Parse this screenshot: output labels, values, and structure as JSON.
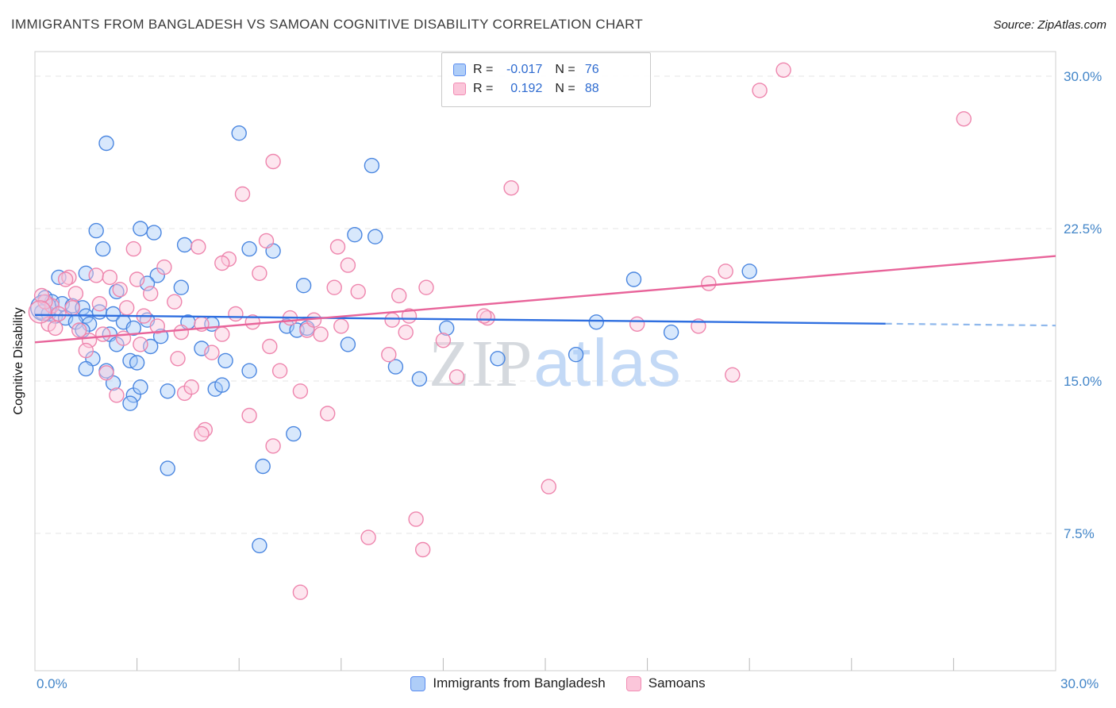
{
  "header": {
    "title": "IMMIGRANTS FROM BANGLADESH VS SAMOAN COGNITIVE DISABILITY CORRELATION CHART",
    "source": "Source: ZipAtlas.com"
  },
  "watermark": {
    "part1": "ZIP",
    "part2": "atlas"
  },
  "y_axis": {
    "label": "Cognitive Disability",
    "ticks": [
      {
        "label": "30.0%",
        "value": 30
      },
      {
        "label": "22.5%",
        "value": 22.5
      },
      {
        "label": "15.0%",
        "value": 15
      },
      {
        "label": "7.5%",
        "value": 7.5
      }
    ]
  },
  "x_axis": {
    "min_label": "0.0%",
    "max_label": "30.0%"
  },
  "stats_box": {
    "rows": [
      {
        "series": "bangladesh",
        "r_label": "R =",
        "r_value": "-0.017",
        "n_label": "N =",
        "n_value": "76"
      },
      {
        "series": "samoans",
        "r_label": "R =",
        "r_value": "0.192",
        "n_label": "N =",
        "n_value": "88"
      }
    ]
  },
  "legend": [
    {
      "series": "bangladesh",
      "label": "Immigrants from Bangladesh"
    },
    {
      "series": "samoans",
      "label": "Samoans"
    }
  ],
  "colors": {
    "bangladesh_fill": "#A8CBF8",
    "bangladesh_stroke": "#4A86E0",
    "samoan_fill": "#FAC8DC",
    "samoan_stroke": "#EE85AD",
    "trend_blue": "#2F6FE0",
    "trend_blue_dashed": "#8FB8EC",
    "trend_pink": "#E8649A",
    "axis_label_blue": "#4285C8",
    "watermark_gray": "#D5D9DE",
    "watermark_blue": "#C3D9F6"
  },
  "chart_data": {
    "type": "scatter",
    "title": "IMMIGRANTS FROM BANGLADESH VS SAMOAN COGNITIVE DISABILITY CORRELATION CHART",
    "xlabel": "",
    "ylabel": "Cognitive Disability",
    "xlim": [
      0,
      30
    ],
    "ylim_visible": [
      0.7,
      31.2
    ],
    "grid_y_values": [
      7.5,
      15,
      22.5,
      30
    ],
    "x_tick_values": [
      3,
      6,
      9,
      12,
      15,
      18,
      21,
      24,
      27
    ],
    "legend_position": "bottom",
    "series": [
      {
        "name": "Immigrants from Bangladesh",
        "R": -0.017,
        "N": 76,
        "points": [
          [
            2.1,
            26.7
          ],
          [
            6.0,
            27.2
          ],
          [
            9.9,
            25.6
          ],
          [
            1.8,
            22.4
          ],
          [
            3.1,
            22.5
          ],
          [
            3.5,
            22.3
          ],
          [
            9.4,
            22.2
          ],
          [
            10.0,
            22.1
          ],
          [
            2.0,
            21.5
          ],
          [
            4.4,
            21.7
          ],
          [
            6.3,
            21.5
          ],
          [
            7.0,
            21.4
          ],
          [
            1.5,
            20.3
          ],
          [
            3.6,
            20.2
          ],
          [
            0.7,
            20.1
          ],
          [
            3.3,
            19.8
          ],
          [
            7.9,
            19.7
          ],
          [
            17.6,
            20.0
          ],
          [
            21.0,
            20.4
          ],
          [
            2.4,
            19.4
          ],
          [
            4.3,
            19.6
          ],
          [
            0.3,
            19.1
          ],
          [
            0.5,
            18.9
          ],
          [
            0.8,
            18.8
          ],
          [
            1.1,
            18.7
          ],
          [
            1.4,
            18.6
          ],
          [
            0.2,
            18.4
          ],
          [
            0.4,
            18.3
          ],
          [
            0.6,
            18.2
          ],
          [
            0.9,
            18.1
          ],
          [
            1.5,
            18.2
          ],
          [
            1.9,
            18.4
          ],
          [
            2.3,
            18.3
          ],
          [
            1.2,
            17.9
          ],
          [
            1.6,
            17.8
          ],
          [
            2.6,
            17.9
          ],
          [
            3.3,
            18.0
          ],
          [
            2.9,
            17.6
          ],
          [
            1.4,
            17.5
          ],
          [
            2.2,
            17.3
          ],
          [
            3.7,
            17.2
          ],
          [
            4.5,
            17.9
          ],
          [
            5.2,
            17.8
          ],
          [
            7.4,
            17.7
          ],
          [
            7.7,
            17.5
          ],
          [
            8.0,
            17.6
          ],
          [
            16.5,
            17.9
          ],
          [
            18.7,
            17.4
          ],
          [
            12.1,
            17.6
          ],
          [
            2.4,
            16.8
          ],
          [
            3.4,
            16.7
          ],
          [
            4.9,
            16.6
          ],
          [
            1.7,
            16.1
          ],
          [
            2.8,
            16.0
          ],
          [
            3.0,
            15.9
          ],
          [
            5.6,
            16.0
          ],
          [
            9.2,
            16.8
          ],
          [
            10.6,
            15.7
          ],
          [
            15.9,
            16.3
          ],
          [
            13.6,
            16.1
          ],
          [
            1.5,
            15.6
          ],
          [
            2.1,
            15.5
          ],
          [
            6.3,
            15.5
          ],
          [
            2.3,
            14.9
          ],
          [
            2.9,
            14.3
          ],
          [
            3.9,
            14.5
          ],
          [
            3.1,
            14.7
          ],
          [
            5.3,
            14.6
          ],
          [
            5.5,
            14.8
          ],
          [
            2.8,
            13.9
          ],
          [
            11.3,
            15.1
          ],
          [
            7.6,
            12.4
          ],
          [
            3.9,
            10.7
          ],
          [
            6.7,
            10.8
          ],
          [
            6.6,
            6.9
          ],
          [
            0.25,
            18.6,
            16
          ]
        ]
      },
      {
        "name": "Samoans",
        "R": 0.192,
        "N": 88,
        "points": [
          [
            22.0,
            30.3
          ],
          [
            21.3,
            29.3
          ],
          [
            27.3,
            27.9
          ],
          [
            7.0,
            25.8
          ],
          [
            14.0,
            24.5
          ],
          [
            6.1,
            24.2
          ],
          [
            6.8,
            21.9
          ],
          [
            2.9,
            21.5
          ],
          [
            4.8,
            21.6
          ],
          [
            5.7,
            21.0
          ],
          [
            5.5,
            20.8
          ],
          [
            6.6,
            20.3
          ],
          [
            8.9,
            21.6
          ],
          [
            9.2,
            20.7
          ],
          [
            1.0,
            20.1
          ],
          [
            1.8,
            20.2
          ],
          [
            2.5,
            19.5
          ],
          [
            8.8,
            19.6
          ],
          [
            10.7,
            19.2
          ],
          [
            11.5,
            19.6
          ],
          [
            13.3,
            18.1
          ],
          [
            17.7,
            17.8
          ],
          [
            19.8,
            19.8
          ],
          [
            20.3,
            20.4
          ],
          [
            20.5,
            15.3
          ],
          [
            15.1,
            9.8
          ],
          [
            11.2,
            8.2
          ],
          [
            9.8,
            7.3
          ],
          [
            11.4,
            6.7
          ],
          [
            7.8,
            4.6
          ],
          [
            7.0,
            11.8
          ],
          [
            6.3,
            13.3
          ],
          [
            5.0,
            12.6
          ],
          [
            4.9,
            12.4
          ],
          [
            4.4,
            14.4
          ],
          [
            4.6,
            14.7
          ],
          [
            5.2,
            16.4
          ],
          [
            5.5,
            17.3
          ],
          [
            7.2,
            15.5
          ],
          [
            7.8,
            14.5
          ],
          [
            8.4,
            17.3
          ],
          [
            8.0,
            17.5
          ],
          [
            10.4,
            16.3
          ],
          [
            10.9,
            17.4
          ],
          [
            12.4,
            15.2
          ],
          [
            10.5,
            18.0
          ],
          [
            11.0,
            18.2
          ],
          [
            2.1,
            15.4
          ],
          [
            2.4,
            14.3
          ],
          [
            1.6,
            17.0
          ],
          [
            1.3,
            17.5
          ],
          [
            0.9,
            20.0
          ],
          [
            0.5,
            18.7
          ],
          [
            0.3,
            18.9
          ],
          [
            0.7,
            18.3
          ],
          [
            1.1,
            18.6
          ],
          [
            1.9,
            18.8
          ],
          [
            2.7,
            18.6
          ],
          [
            3.2,
            18.2
          ],
          [
            3.6,
            17.7
          ],
          [
            4.1,
            18.9
          ],
          [
            3.4,
            19.3
          ],
          [
            2.0,
            17.3
          ],
          [
            2.6,
            17.1
          ],
          [
            3.1,
            16.8
          ],
          [
            1.5,
            16.5
          ],
          [
            4.3,
            17.4
          ],
          [
            4.9,
            17.8
          ],
          [
            5.9,
            18.3
          ],
          [
            6.4,
            17.9
          ],
          [
            7.5,
            18.1
          ],
          [
            8.2,
            18.0
          ],
          [
            9.0,
            17.7
          ],
          [
            13.2,
            18.2
          ],
          [
            0.2,
            19.2
          ],
          [
            0.4,
            17.8
          ],
          [
            0.6,
            17.6
          ],
          [
            2.2,
            20.1
          ],
          [
            3.8,
            20.6
          ],
          [
            4.2,
            16.1
          ],
          [
            6.9,
            16.7
          ],
          [
            9.5,
            19.4
          ],
          [
            12.0,
            17.0
          ],
          [
            1.2,
            19.3
          ],
          [
            3.0,
            20.0
          ],
          [
            19.5,
            17.7
          ],
          [
            8.6,
            13.4
          ],
          [
            0.15,
            18.4,
            14
          ]
        ]
      }
    ],
    "trend_lines": [
      {
        "series": "Immigrants from Bangladesh",
        "solid": [
          [
            0,
            18.25
          ],
          [
            25,
            17.82
          ]
        ],
        "dashed": [
          [
            25,
            17.82
          ],
          [
            30,
            17.73
          ]
        ]
      },
      {
        "series": "Samoans",
        "solid": [
          [
            0,
            16.9
          ],
          [
            30,
            21.15
          ]
        ]
      }
    ]
  }
}
